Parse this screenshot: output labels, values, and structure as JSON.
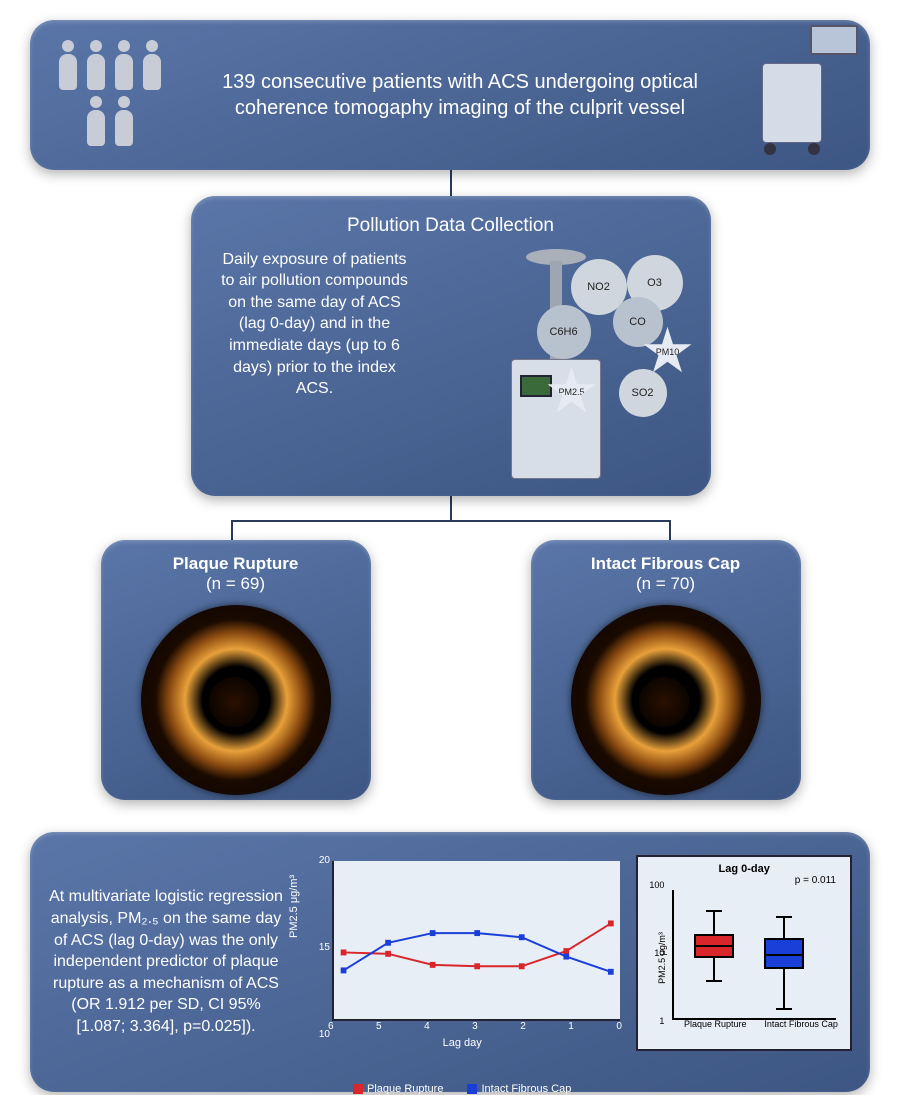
{
  "top_panel": {
    "text": "139 consecutive patients with ACS undergoing optical coherence tomogaphy imaging of the culprit vessel"
  },
  "mid_panel": {
    "title": "Pollution Data Collection",
    "text": "Daily exposure of patients to air pollution compounds on the same day of ACS (lag 0-day) and in the immediate days (up to 6 days) prior to the index ACS.",
    "pollutants": [
      "NO2",
      "O3",
      "CO",
      "C6H6",
      "PM10",
      "PM2.5",
      "SO2"
    ]
  },
  "branch_left": {
    "title": "Plaque Rupture",
    "n": "(n = 69)"
  },
  "branch_right": {
    "title": "Intact Fibrous Cap",
    "n": "(n = 70)"
  },
  "bottom_panel": {
    "text": "At multivariate logistic regression analysis, PM₂.₅ on the same day of ACS (lag 0-day) was the only independent predictor of plaque rupture as a mechanism of ACS (OR 1.912 per SD, CI 95% [1.087; 3.364], p=0.025]).",
    "line_chart": {
      "type": "line",
      "ylabel": "PM2.5 μg/m³",
      "xlabel": "Lag day",
      "x_categories": [
        "6",
        "5",
        "4",
        "3",
        "2",
        "1",
        "0"
      ],
      "ylim": [
        10,
        20
      ],
      "yticks": [
        10,
        15,
        20
      ],
      "series": [
        {
          "name": "Plaque Rupture",
          "color": "#d9262a",
          "values": [
            14.1,
            14.0,
            13.2,
            13.1,
            13.1,
            14.2,
            16.2
          ]
        },
        {
          "name": "Intact Fibrous Cap",
          "color": "#1a3fd9",
          "values": [
            12.8,
            14.8,
            15.5,
            15.5,
            15.2,
            13.8,
            12.7
          ]
        }
      ],
      "background_color": "#e8eef6"
    },
    "box_chart": {
      "type": "boxplot",
      "title": "Lag 0-day",
      "p_label": "p = 0.011",
      "ylabel": "PM2.5 μg/m³",
      "ylim": [
        1,
        100
      ],
      "scale": "log",
      "yticks": [
        1,
        10,
        100
      ],
      "categories": [
        "Plaque Rupture",
        "Intact Fibrous Cap"
      ],
      "boxes": [
        {
          "color": "#d9262a",
          "q1": 9,
          "median": 14,
          "q3": 21,
          "low": 4,
          "high": 48
        },
        {
          "color": "#1a3fd9",
          "q1": 6,
          "median": 10,
          "q3": 18,
          "low": 1.5,
          "high": 38
        }
      ]
    },
    "legend": {
      "items": [
        {
          "label": "Plaque Rupture",
          "color": "#d9262a"
        },
        {
          "label": "Intact Fibrous Cap",
          "color": "#1a3fd9"
        }
      ]
    }
  },
  "style": {
    "panel_gradient_from": "#5a76a8",
    "panel_gradient_to": "#3d5683",
    "connector_color": "#2a3a5a",
    "text_color": "#ffffff",
    "oct_ring_color": "#e8a03a"
  }
}
